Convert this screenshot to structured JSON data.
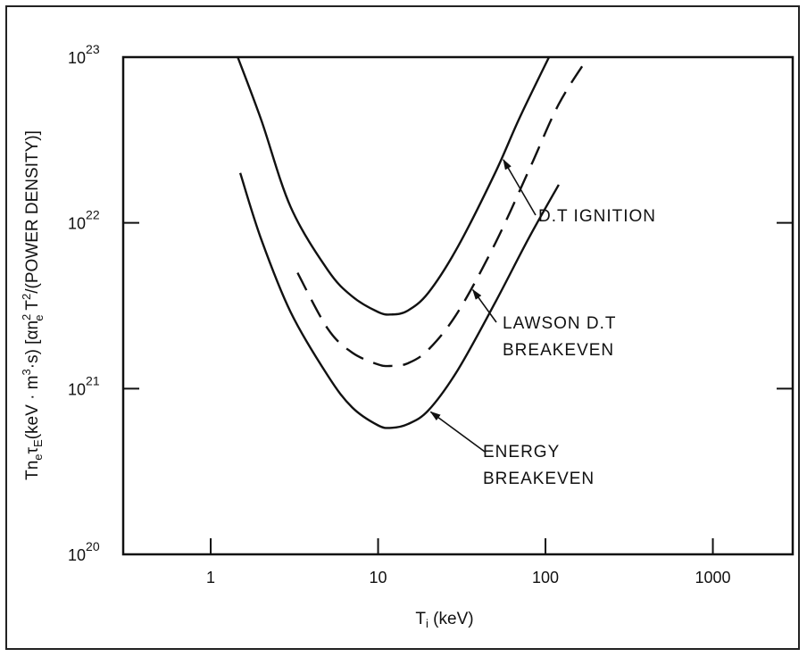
{
  "chart_data": {
    "type": "line",
    "x_scale": "log",
    "y_scale": "log",
    "xlim": [
      0.3,
      3000
    ],
    "ylim": [
      1e+20,
      1e+23
    ],
    "x_ticks": [
      1,
      10,
      100,
      1000
    ],
    "x_tick_labels": [
      "1",
      "10",
      "100",
      "1000"
    ],
    "y_ticks": [
      1e+20,
      1e+21,
      1e+22,
      1e+23
    ],
    "y_tick_labels": [
      {
        "base": "10",
        "exp": "20"
      },
      {
        "base": "10",
        "exp": "21"
      },
      {
        "base": "10",
        "exp": "22"
      },
      {
        "base": "10",
        "exp": "23"
      }
    ],
    "xlabel": {
      "main": "T",
      "sub": "i",
      "unit": " (keV)"
    },
    "ylabel": "Tn_e τ_E (keV · m^3 · s)  [αn_e^2 T^2/(POWER DENSITY)]",
    "grid": false,
    "series": [
      {
        "name": "D.T IGNITION",
        "style": "solid",
        "x": [
          1.45,
          2,
          3,
          5,
          7,
          10,
          12,
          15,
          20,
          30,
          50,
          70,
          105
        ],
        "y": [
          1e+23,
          4.2e+22,
          1.25e+22,
          5.2e+21,
          3.6e+21,
          2.9e+21,
          2.8e+21,
          2.95e+21,
          3.8e+21,
          7.2e+21,
          2e+22,
          4.3e+22,
          1e+23
        ]
      },
      {
        "name": "LAWSON D.T BREAKEVEN",
        "style": "dashed",
        "x": [
          3.3,
          5,
          7,
          10,
          12,
          15,
          20,
          30,
          50,
          80,
          120,
          180
        ],
        "y": [
          5e+21,
          2.3e+21,
          1.65e+21,
          1.4e+21,
          1.37e+21,
          1.42e+21,
          1.72e+21,
          2.9e+21,
          7.5e+21,
          2.1e+22,
          5.2e+22,
          1e+23
        ]
      },
      {
        "name": "ENERGY BREAKEVEN",
        "style": "solid",
        "x": [
          1.5,
          2,
          3,
          5,
          7,
          10,
          12,
          15,
          20,
          30,
          50,
          80,
          120
        ],
        "y": [
          2e+22,
          8e+21,
          2.9e+21,
          1.2e+21,
          7.7e+20,
          6e+20,
          5.8e+20,
          6.1e+20,
          7.4e+20,
          1.3e+21,
          3.3e+21,
          8.2e+21,
          1.7e+22
        ]
      }
    ],
    "annotations": [
      {
        "lines": [
          "D.T IGNITION"
        ],
        "target_series": 0,
        "target_x": 55
      },
      {
        "lines": [
          "LAWSON D.T",
          "BREAKEVEN"
        ],
        "target_series": 1,
        "target_x": 36
      },
      {
        "lines": [
          "ENERGY",
          "BREAKEVEN"
        ],
        "target_series": 2,
        "target_x": 20
      }
    ]
  }
}
